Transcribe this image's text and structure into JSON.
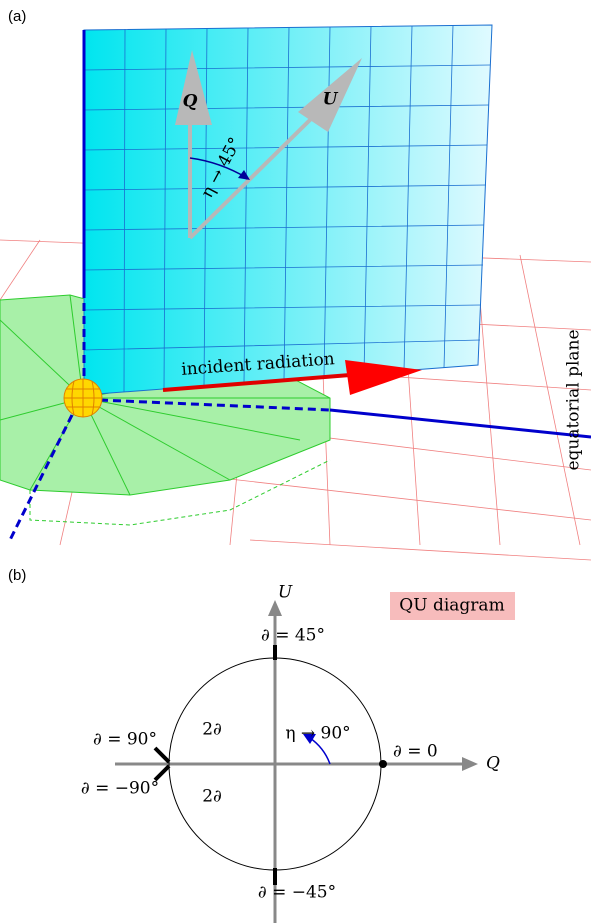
{
  "panel_a": {
    "label": "(a)",
    "vector_q": "Q",
    "vector_u": "U",
    "angle_label": "η → 45°",
    "arrow_label": "incident radiation",
    "plane_label": "equatorial plane"
  },
  "panel_b": {
    "label": "(b)",
    "axis_u": "U",
    "axis_q": "Q",
    "title": "QU diagram",
    "top_label": "∂ = 45°",
    "bottom_label": "∂ = −45°",
    "right_label": "∂ = 0",
    "left_upper_label": "∂ = 90°",
    "left_lower_label": "∂ = −90°",
    "upper_angle": "2∂",
    "lower_angle": "2∂",
    "rotation_label": "η → 90°"
  }
}
